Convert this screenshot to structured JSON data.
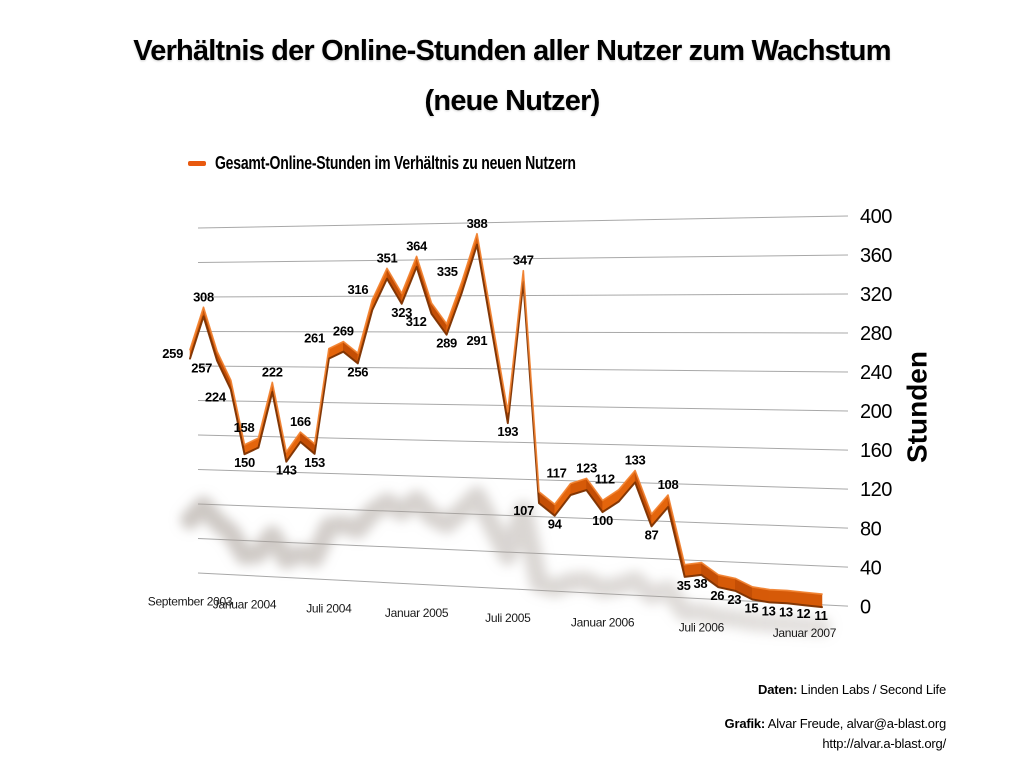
{
  "title": {
    "line1": "Verhältnis der Online-Stunden aller Nutzer zum Wachstum",
    "line2": "(neue Nutzer)"
  },
  "legend": {
    "label": "Gesamt-Online-Stunden im Verhältnis zu neuen Nutzern"
  },
  "y_axis": {
    "label": "Stunden",
    "ticks": [
      0,
      40,
      80,
      120,
      160,
      200,
      240,
      280,
      320,
      360,
      400
    ],
    "min": 0,
    "max": 400
  },
  "x_axis": {
    "labels": [
      {
        "index": 0,
        "text": "September 2003"
      },
      {
        "index": 4,
        "text": "Januar 2004"
      },
      {
        "index": 10,
        "text": "Juli 2004"
      },
      {
        "index": 16,
        "text": "Januar 2005"
      },
      {
        "index": 22,
        "text": "Juli 2005"
      },
      {
        "index": 28,
        "text": "Januar 2006"
      },
      {
        "index": 34,
        "text": "Juli 2006"
      },
      {
        "index": 40,
        "text": "Januar 2007"
      }
    ]
  },
  "chart_data": {
    "type": "line",
    "title": "Verhältnis der Online-Stunden aller Nutzer zum Wachstum (neue Nutzer)",
    "ylabel": "Stunden",
    "ylim": [
      0,
      400
    ],
    "grid": true,
    "legend_position": "top",
    "style": "3d-ribbon-perspective",
    "x_tick_labels": [
      "September 2003",
      "Januar 2004",
      "Juli 2004",
      "Januar 2005",
      "Juli 2005",
      "Januar 2006",
      "Juli 2006",
      "Januar 2007"
    ],
    "series": [
      {
        "name": "Gesamt-Online-Stunden im Verhältnis zu neuen Nutzern",
        "values": [
          259,
          308,
          257,
          224,
          150,
          158,
          222,
          143,
          166,
          153,
          261,
          269,
          256,
          316,
          351,
          323,
          364,
          312,
          289,
          335,
          388,
          291,
          193,
          347,
          107,
          94,
          117,
          123,
          100,
          112,
          133,
          87,
          108,
          35,
          38,
          26,
          23,
          15,
          13,
          13,
          12,
          11
        ]
      }
    ]
  },
  "footer": {
    "daten_label": "Daten:",
    "daten_value": " Linden Labs / Second Life",
    "grafik_label": "Grafik:",
    "grafik_value": " Alvar Freude, alvar@a-blast.org",
    "url": "http://alvar.a-blast.org/"
  },
  "colors": {
    "ribbon_light": "#e4650c",
    "ribbon_mid": "#c44e05",
    "ribbon_flat": "#d65a08",
    "ribbon_edge_top": "#f28433",
    "ribbon_edge_bottom": "#7d3302",
    "legend_dash": "#e8590f",
    "gridline": "#a8a8a8",
    "shadow": "#a89f98",
    "label_text": "#000000"
  }
}
